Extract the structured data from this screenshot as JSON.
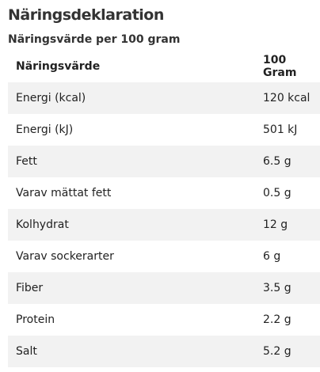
{
  "header": {
    "title": "Näringsdeklaration",
    "subtitle": "Näringsvärde per 100 gram"
  },
  "table": {
    "columns": [
      "Näringsvärde",
      "100 Gram"
    ],
    "rows": [
      [
        "Energi (kcal)",
        "120 kcal"
      ],
      [
        "Energi (kJ)",
        "501 kJ"
      ],
      [
        "Fett",
        "6.5 g"
      ],
      [
        "Varav mättat fett",
        "0.5 g"
      ],
      [
        "Kolhydrat",
        "12 g"
      ],
      [
        "Varav sockerarter",
        "6 g"
      ],
      [
        "Fiber",
        "3.5 g"
      ],
      [
        "Protein",
        "2.2 g"
      ],
      [
        "Salt",
        "5.2 g"
      ]
    ]
  }
}
